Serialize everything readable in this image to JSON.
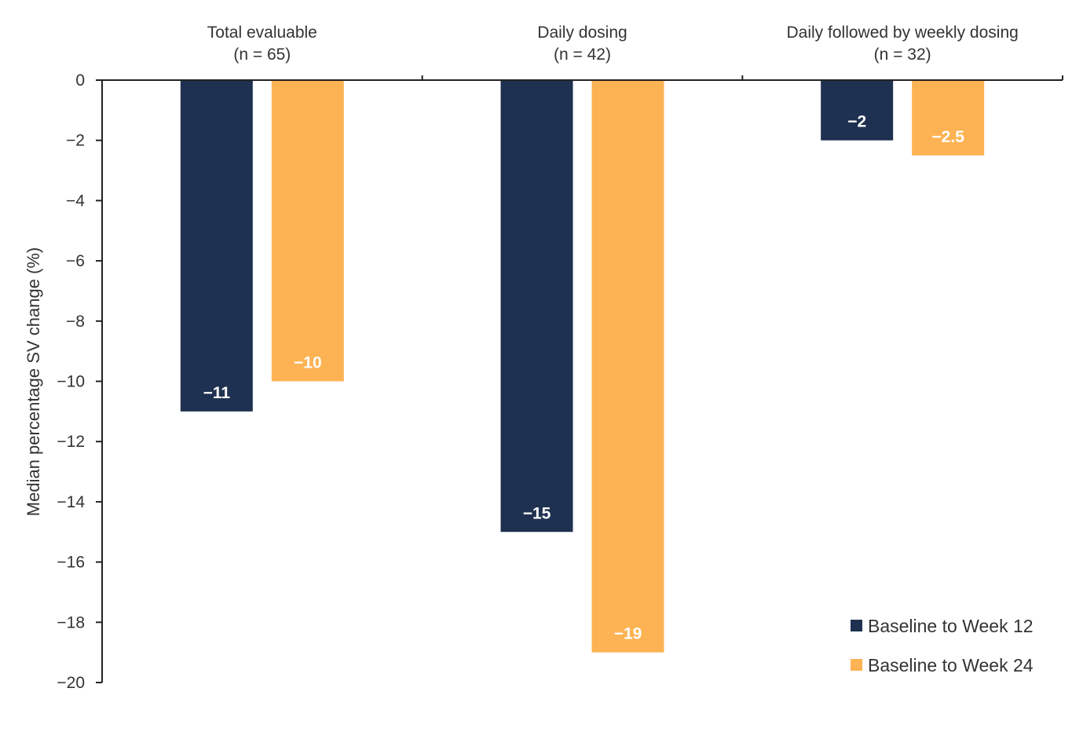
{
  "chart_data": {
    "type": "bar",
    "title": "",
    "ylabel": "Median percentage SV change  (%)",
    "xlabel": "",
    "ylim": [
      -20,
      0
    ],
    "yticks": [
      0,
      -2,
      -4,
      -6,
      -8,
      -10,
      -12,
      -14,
      -16,
      -18,
      -20
    ],
    "ytick_labels": [
      "0",
      "−2",
      "−4",
      "−6",
      "−8",
      "−10",
      "−12",
      "−14",
      "−16",
      "−18",
      "−20"
    ],
    "categories": [
      {
        "name": "Total evaluable",
        "n": "(n = 65)"
      },
      {
        "name": "Daily dosing",
        "n": "(n = 42)"
      },
      {
        "name": "Daily followed by weekly dosing",
        "n": "(n = 32)"
      }
    ],
    "series": [
      {
        "name": "Baseline to Week 12",
        "color": "#1f3150",
        "values": [
          -11,
          -15,
          -2
        ],
        "labels": [
          "−11",
          "−15",
          "−2"
        ]
      },
      {
        "name": "Baseline to Week 24",
        "color": "#fdb353",
        "values": [
          -10,
          -19,
          -2.5
        ],
        "labels": [
          "−10",
          "−19",
          "−2.5"
        ]
      }
    ],
    "legend_position": "bottom-right",
    "category_axis_position": "top",
    "grid": false
  }
}
